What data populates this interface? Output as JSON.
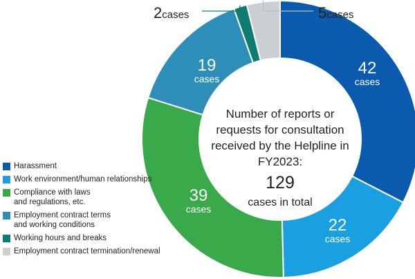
{
  "chart_data": {
    "type": "pie",
    "variant": "donut",
    "categories": [
      "Harassment",
      "Work environment/human relationships",
      "Compliance with laws\nand regulations, etc.",
      "Employment contract terms\nand working conditions",
      "Working hours and breaks",
      "Employment contract termination/renewal"
    ],
    "values": [
      42,
      22,
      39,
      19,
      2,
      5
    ],
    "colors": [
      "#0a5bad",
      "#1aa0e0",
      "#3aa94a",
      "#2d8fb8",
      "#0e7c72",
      "#c9cfd3"
    ],
    "value_unit": "cases",
    "center": {
      "line1": "Number of reports or",
      "line2": "requests for consultation",
      "line3": "received by the Helpline in",
      "line4": "FY2023:",
      "total": "129",
      "total_label": "cases in total"
    },
    "legend_position": "bottom-left"
  }
}
